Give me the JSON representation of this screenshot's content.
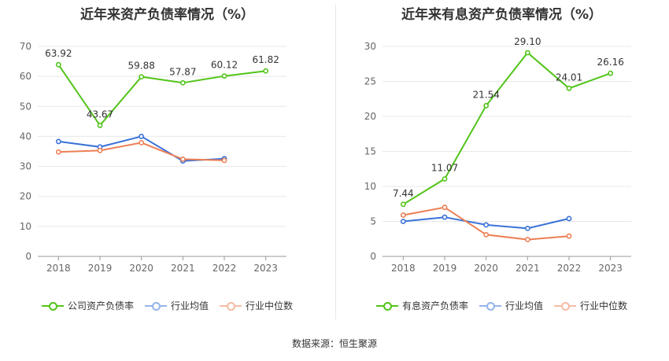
{
  "source": "数据来源：恒生聚源",
  "chart_data": [
    {
      "type": "line",
      "title": "近年来资产负债率情况（%）",
      "categories": [
        "2018",
        "2019",
        "2020",
        "2021",
        "2022",
        "2023"
      ],
      "ylim": [
        0,
        70
      ],
      "yticks": [
        0,
        10,
        20,
        30,
        40,
        50,
        60,
        70
      ],
      "grid": true,
      "legend_position": "bottom",
      "series": [
        {
          "name": "公司资产负债率",
          "color": "#52c41a",
          "values": [
            63.92,
            43.67,
            59.88,
            57.87,
            60.12,
            61.82
          ],
          "labels": [
            "63.92",
            "43.67",
            "59.88",
            "57.87",
            "60.12",
            "61.82"
          ]
        },
        {
          "name": "行业均值",
          "color": "#3a72d8",
          "values": [
            38.3,
            36.5,
            40.0,
            31.8,
            32.6,
            null
          ],
          "labels": []
        },
        {
          "name": "行业中位数",
          "color": "#ec7f55",
          "values": [
            34.8,
            35.3,
            37.9,
            32.4,
            32.0,
            null
          ],
          "labels": []
        }
      ]
    },
    {
      "type": "line",
      "title": "近年来有息资产负债率情况（%）",
      "categories": [
        "2018",
        "2019",
        "2020",
        "2021",
        "2022",
        "2023"
      ],
      "ylim": [
        0,
        30
      ],
      "yticks": [
        0,
        5,
        10,
        15,
        20,
        25,
        30
      ],
      "grid": true,
      "legend_position": "bottom",
      "series": [
        {
          "name": "有息资产负债率",
          "color": "#52c41a",
          "values": [
            7.44,
            11.07,
            21.54,
            29.1,
            24.01,
            26.16
          ],
          "labels": [
            "7.44",
            "11.07",
            "21.54",
            "29.10",
            "24.01",
            "26.16"
          ]
        },
        {
          "name": "行业均值",
          "color": "#3a72d8",
          "values": [
            5.0,
            5.6,
            4.5,
            4.0,
            5.4,
            null
          ],
          "labels": []
        },
        {
          "name": "行业中位数",
          "color": "#ec7f55",
          "values": [
            5.9,
            7.0,
            3.1,
            2.4,
            2.9,
            null
          ],
          "labels": []
        }
      ]
    }
  ]
}
